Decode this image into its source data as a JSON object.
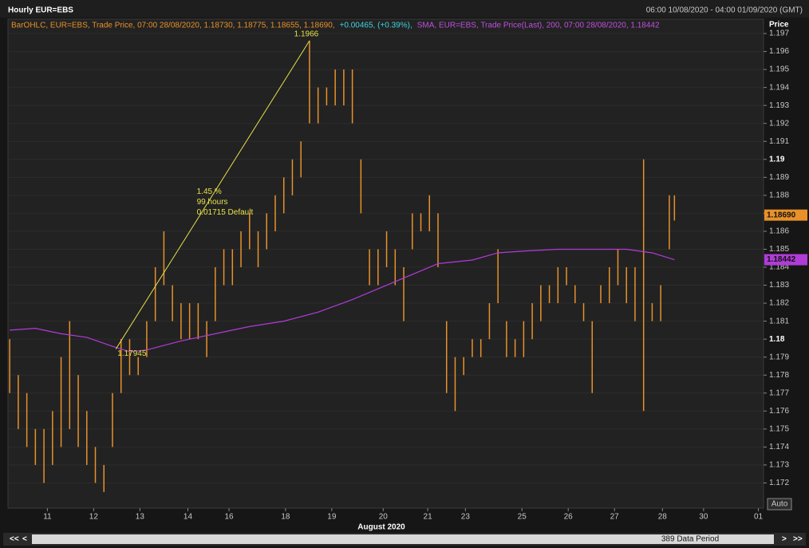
{
  "header": {
    "title": "Hourly EUR=EBS",
    "range": "06:00 10/08/2020 - 04:00 01/09/2020 (GMT)"
  },
  "legend": {
    "ohlc": "BarOHLC, EUR=EBS, Trade Price, 07:00 28/08/2020, 1.18730, 1.18775, 1.18655, 1.18690,",
    "change": "+0.00465, (+0.39%),",
    "sma": "SMA, EUR=EBS, Trade Price(Last), 200, 07:00 28/08/2020, 1.18442"
  },
  "footer": {
    "auto": "Auto",
    "period": "389 Data Period",
    "first": "<<",
    "prev": "<",
    "next": ">",
    "last": ">>"
  },
  "chart_data": {
    "type": "ohlc",
    "y_label": "Price",
    "x_label": "August 2020",
    "xlim": [
      -1,
      440
    ],
    "ylim": [
      1.1706,
      1.1978
    ],
    "xticks": [
      {
        "value": 22,
        "label": "11"
      },
      {
        "value": 49,
        "label": "12"
      },
      {
        "value": 76,
        "label": "13"
      },
      {
        "value": 104,
        "label": "14"
      },
      {
        "value": 128,
        "label": "16"
      },
      {
        "value": 161,
        "label": "18"
      },
      {
        "value": 188,
        "label": "19"
      },
      {
        "value": 218,
        "label": "20"
      },
      {
        "value": 244,
        "label": "21"
      },
      {
        "value": 266,
        "label": "23"
      },
      {
        "value": 299,
        "label": "25"
      },
      {
        "value": 326,
        "label": "26"
      },
      {
        "value": 353,
        "label": "27"
      },
      {
        "value": 381,
        "label": "28"
      },
      {
        "value": 405,
        "label": "30"
      },
      {
        "value": 437,
        "label": "01"
      }
    ],
    "yticks": [
      1.172,
      1.173,
      1.174,
      1.175,
      1.176,
      1.177,
      1.178,
      1.179,
      1.18,
      1.181,
      1.182,
      1.183,
      1.184,
      1.185,
      1.186,
      1.187,
      1.188,
      1.189,
      1.19,
      1.191,
      1.192,
      1.193,
      1.194,
      1.195,
      1.196,
      1.197
    ],
    "series": [
      {
        "name": "BarOHLC",
        "color": "#e8912a",
        "x": [
          0,
          5,
          10,
          15,
          20,
          25,
          30,
          35,
          40,
          45,
          50,
          55,
          60,
          65,
          70,
          75,
          80,
          85,
          90,
          95,
          100,
          105,
          110,
          115,
          120,
          125,
          130,
          135,
          140,
          145,
          150,
          155,
          160,
          165,
          170,
          175,
          180,
          185,
          190,
          195,
          200,
          205,
          210,
          215,
          220,
          225,
          230,
          235,
          240,
          245,
          250,
          255,
          260,
          265,
          270,
          275,
          280,
          285,
          290,
          295,
          300,
          305,
          310,
          315,
          320,
          325,
          330,
          335,
          340,
          345,
          350,
          355,
          360,
          365,
          370,
          375,
          380,
          385,
          388
        ],
        "high": [
          1.18,
          1.178,
          1.177,
          1.175,
          1.175,
          1.176,
          1.179,
          1.181,
          1.178,
          1.176,
          1.174,
          1.173,
          1.177,
          1.18,
          1.18,
          1.179,
          1.181,
          1.184,
          1.186,
          1.183,
          1.182,
          1.182,
          1.182,
          1.181,
          1.184,
          1.185,
          1.185,
          1.186,
          1.187,
          1.186,
          1.187,
          1.188,
          1.189,
          1.19,
          1.191,
          1.1966,
          1.194,
          1.194,
          1.195,
          1.195,
          1.195,
          1.19,
          1.185,
          1.185,
          1.186,
          1.185,
          1.184,
          1.187,
          1.187,
          1.188,
          1.187,
          1.181,
          1.179,
          1.179,
          1.18,
          1.18,
          1.182,
          1.185,
          1.181,
          1.18,
          1.181,
          1.182,
          1.183,
          1.183,
          1.184,
          1.184,
          1.183,
          1.182,
          1.181,
          1.183,
          1.184,
          1.185,
          1.184,
          1.184,
          1.19,
          1.182,
          1.183,
          1.188,
          1.188
        ],
        "low": [
          1.177,
          1.175,
          1.174,
          1.173,
          1.172,
          1.173,
          1.174,
          1.175,
          1.174,
          1.173,
          1.172,
          1.1715,
          1.174,
          1.177,
          1.178,
          1.178,
          1.179,
          1.181,
          1.183,
          1.181,
          1.18,
          1.18,
          1.18,
          1.179,
          1.181,
          1.183,
          1.183,
          1.184,
          1.185,
          1.184,
          1.185,
          1.186,
          1.187,
          1.188,
          1.189,
          1.192,
          1.192,
          1.193,
          1.193,
          1.193,
          1.192,
          1.187,
          1.183,
          1.183,
          1.184,
          1.183,
          1.181,
          1.185,
          1.186,
          1.186,
          1.184,
          1.177,
          1.176,
          1.178,
          1.179,
          1.179,
          1.18,
          1.182,
          1.179,
          1.179,
          1.179,
          1.18,
          1.181,
          1.182,
          1.182,
          1.183,
          1.182,
          1.181,
          1.177,
          1.182,
          1.182,
          1.183,
          1.182,
          1.181,
          1.176,
          1.181,
          1.181,
          1.185,
          1.1866
        ]
      },
      {
        "name": "SMA",
        "color": "#b03cd8",
        "x": [
          0,
          15,
          30,
          45,
          60,
          70,
          80,
          100,
          120,
          140,
          160,
          180,
          200,
          220,
          240,
          250,
          270,
          285,
          300,
          320,
          340,
          360,
          375,
          388
        ],
        "values": [
          1.1805,
          1.1806,
          1.1803,
          1.1801,
          1.1796,
          1.1793,
          1.1794,
          1.1799,
          1.1803,
          1.1807,
          1.181,
          1.1815,
          1.1822,
          1.183,
          1.1838,
          1.1842,
          1.1844,
          1.1848,
          1.1849,
          1.185,
          1.185,
          1.185,
          1.1848,
          1.18442
        ]
      }
    ],
    "badges": [
      {
        "value": 1.1869,
        "label": "1.18690",
        "color": "#e8912a"
      },
      {
        "value": 1.18442,
        "label": "1.18442",
        "color": "#b03cd8"
      }
    ],
    "trendline": {
      "x": [
        62,
        175
      ],
      "y": [
        1.17945,
        1.1966
      ],
      "y_labels": [
        "1.17945",
        "1.1966"
      ],
      "color": "#e6e04a",
      "notes": [
        "1.45 %",
        "99 hours",
        "0.01715 Default"
      ]
    }
  }
}
